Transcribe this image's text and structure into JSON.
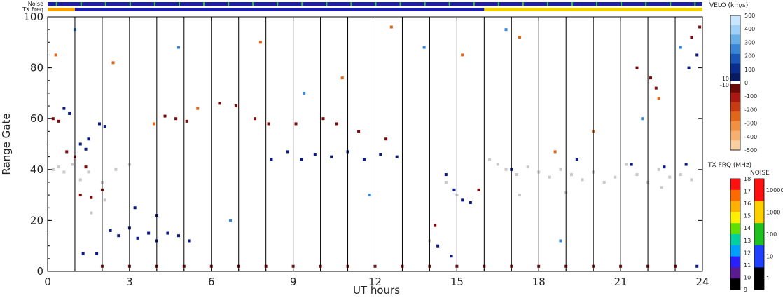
{
  "chart_data": {
    "type": "scatter",
    "xlabel": "UT hours",
    "ylabel": "Range Gate",
    "xlim": [
      0,
      24
    ],
    "ylim": [
      0,
      100
    ],
    "x_ticks": [
      0,
      3,
      6,
      9,
      12,
      15,
      18,
      21,
      24
    ],
    "y_ticks": [
      0,
      20,
      40,
      60,
      80,
      100
    ],
    "scan_markers_hours": [
      1,
      2,
      3,
      4,
      5,
      6,
      7,
      8,
      9,
      10,
      11,
      12,
      13,
      14,
      15,
      16,
      17,
      18,
      19,
      20,
      21,
      22,
      23
    ],
    "strip_labels": {
      "noise": "Noise",
      "freq": "TX Freq"
    },
    "freq_strip_segments": [
      {
        "start": 0,
        "end": 1,
        "color": "#f5a000"
      },
      {
        "start": 1,
        "end": 16,
        "color": "#1e1ea8"
      },
      {
        "start": 16,
        "end": 24,
        "color": "#f0d000"
      }
    ],
    "velocity_colorbar": {
      "title": "VELO (km/s)",
      "ticks": [
        "500",
        "400",
        "300",
        "200",
        "100",
        "0",
        "-100",
        "-200",
        "-300",
        "-400",
        "-500"
      ],
      "small_ticks": [
        "10",
        "-10"
      ],
      "colors": [
        "#c8e6ff",
        "#9fd0f5",
        "#6aaee8",
        "#3a86d6",
        "#1a55b8",
        "#0a2c8c",
        "#081a60",
        "#6a0a0a",
        "#a81a10",
        "#c83a12",
        "#e0661a",
        "#f09040",
        "#f5b070",
        "#f8cfa0"
      ]
    },
    "freq_colorbar": {
      "title": "TX FRQ (MHz)",
      "ticks": [
        "18",
        "17",
        "16",
        "15",
        "14",
        "13",
        "12",
        "11",
        "10",
        "9"
      ],
      "colors": [
        "#ff1010",
        "#ff6a00",
        "#ffb000",
        "#fff000",
        "#60e000",
        "#00d0a0",
        "#00a0ff",
        "#2a20ff",
        "#5a1a90",
        "#000000"
      ]
    },
    "noise_colorbar": {
      "title": "NOISE",
      "ticks": [
        "10000",
        "1000",
        "100",
        "10",
        "1"
      ],
      "colors": [
        "#ff1010",
        "#ffd000",
        "#20c020",
        "#2040ff",
        "#000000"
      ]
    },
    "series": [
      {
        "color": "#c8c8c8",
        "points": [
          [
            0.2,
            40
          ],
          [
            0.4,
            41
          ],
          [
            0.6,
            39
          ],
          [
            0.9,
            42
          ],
          [
            1.2,
            36
          ],
          [
            1.5,
            39
          ],
          [
            2.0,
            35
          ],
          [
            2.5,
            40
          ],
          [
            3.0,
            42
          ],
          [
            1.6,
            23
          ],
          [
            2.1,
            28
          ],
          [
            16.2,
            44
          ],
          [
            16.5,
            42
          ],
          [
            16.8,
            40
          ],
          [
            17.2,
            38
          ],
          [
            17.6,
            41
          ],
          [
            18.0,
            39
          ],
          [
            18.4,
            37
          ],
          [
            18.8,
            40
          ],
          [
            19.2,
            38
          ],
          [
            19.6,
            36
          ],
          [
            20.0,
            39
          ],
          [
            20.4,
            35
          ],
          [
            20.8,
            37
          ],
          [
            21.2,
            42
          ],
          [
            21.6,
            38
          ],
          [
            22.0,
            35
          ],
          [
            22.4,
            40
          ],
          [
            22.8,
            37
          ],
          [
            23.2,
            38
          ],
          [
            23.6,
            36
          ],
          [
            15.0,
            30
          ],
          [
            14.6,
            35
          ],
          [
            14.0,
            12
          ],
          [
            17.3,
            30
          ],
          [
            19.0,
            31
          ],
          [
            22.5,
            33
          ]
        ]
      },
      {
        "color": "#0a1a80",
        "points": [
          [
            0.6,
            64
          ],
          [
            0.8,
            62
          ],
          [
            1.2,
            50
          ],
          [
            1.5,
            52
          ],
          [
            1.9,
            58
          ],
          [
            2.1,
            57
          ],
          [
            1.4,
            48
          ],
          [
            2.3,
            16
          ],
          [
            2.6,
            14
          ],
          [
            3.0,
            17
          ],
          [
            3.3,
            13
          ],
          [
            3.7,
            15
          ],
          [
            4.0,
            12
          ],
          [
            4.4,
            15
          ],
          [
            4.8,
            14
          ],
          [
            5.2,
            12
          ],
          [
            3.2,
            25
          ],
          [
            4.0,
            22
          ],
          [
            8.2,
            44
          ],
          [
            8.8,
            47
          ],
          [
            9.3,
            44
          ],
          [
            9.8,
            46
          ],
          [
            10.4,
            45
          ],
          [
            11.0,
            47
          ],
          [
            11.6,
            44
          ],
          [
            12.2,
            46
          ],
          [
            12.8,
            45
          ],
          [
            14.6,
            38
          ],
          [
            14.9,
            32
          ],
          [
            15.2,
            28
          ],
          [
            15.5,
            27
          ],
          [
            14.8,
            6
          ],
          [
            14.3,
            10
          ],
          [
            1.3,
            7
          ],
          [
            1.8,
            7
          ],
          [
            17.0,
            40
          ],
          [
            19.4,
            44
          ],
          [
            21.4,
            42
          ],
          [
            22.6,
            41
          ],
          [
            23.4,
            42
          ],
          [
            23.5,
            80
          ],
          [
            23.8,
            85
          ],
          [
            23.8,
            2
          ]
        ]
      },
      {
        "color": "#7a0a0a",
        "points": [
          [
            0.2,
            60
          ],
          [
            0.4,
            59
          ],
          [
            0.7,
            47
          ],
          [
            1.0,
            45
          ],
          [
            1.4,
            41
          ],
          [
            1.2,
            30
          ],
          [
            1.6,
            29
          ],
          [
            2.0,
            32
          ],
          [
            4.3,
            61
          ],
          [
            4.7,
            60
          ],
          [
            5.1,
            59
          ],
          [
            6.3,
            66
          ],
          [
            6.9,
            65
          ],
          [
            7.6,
            60
          ],
          [
            8.1,
            58
          ],
          [
            9.1,
            58
          ],
          [
            10.1,
            60
          ],
          [
            10.6,
            58
          ],
          [
            11.4,
            55
          ],
          [
            12.4,
            52
          ],
          [
            14.2,
            18
          ],
          [
            15.8,
            32
          ],
          [
            21.6,
            80
          ],
          [
            22.1,
            76
          ],
          [
            22.3,
            72
          ],
          [
            23.6,
            92
          ],
          [
            23.9,
            96
          ],
          [
            2.0,
            2
          ],
          [
            3.0,
            2
          ],
          [
            4.0,
            2
          ],
          [
            5.0,
            2
          ],
          [
            6.0,
            2
          ],
          [
            7.0,
            2
          ],
          [
            8.0,
            2
          ],
          [
            9.0,
            2
          ],
          [
            10.0,
            2
          ],
          [
            11.0,
            2
          ],
          [
            12.0,
            2
          ],
          [
            13.0,
            2
          ],
          [
            14.0,
            2
          ],
          [
            15.0,
            2
          ],
          [
            16.0,
            2
          ],
          [
            17.0,
            2
          ],
          [
            18.0,
            2
          ],
          [
            19.0,
            2
          ],
          [
            20.0,
            2
          ],
          [
            21.0,
            2
          ],
          [
            22.0,
            2
          ],
          [
            23.0,
            2
          ]
        ]
      },
      {
        "color": "#e0661a",
        "points": [
          [
            0.3,
            85
          ],
          [
            2.4,
            82
          ],
          [
            5.5,
            64
          ],
          [
            7.8,
            90
          ],
          [
            12.6,
            96
          ],
          [
            15.2,
            85
          ],
          [
            17.3,
            92
          ],
          [
            20.0,
            55
          ],
          [
            22.4,
            68
          ],
          [
            10.8,
            76
          ],
          [
            3.9,
            58
          ],
          [
            18.6,
            47
          ]
        ]
      },
      {
        "color": "#3a86d6",
        "points": [
          [
            1.0,
            95
          ],
          [
            4.8,
            88
          ],
          [
            9.4,
            70
          ],
          [
            13.8,
            88
          ],
          [
            16.8,
            95
          ],
          [
            21.8,
            60
          ],
          [
            23.2,
            88
          ],
          [
            6.7,
            20
          ],
          [
            18.8,
            12
          ],
          [
            11.8,
            30
          ]
        ]
      }
    ]
  }
}
